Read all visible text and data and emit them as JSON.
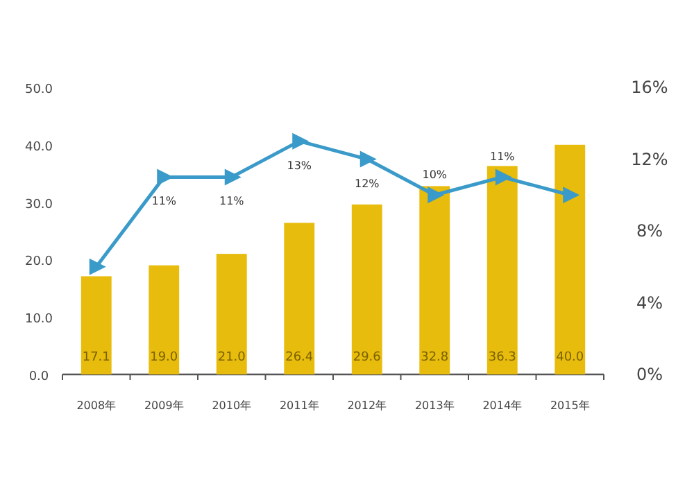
{
  "chart_data": {
    "type": "bar",
    "categories": [
      "2008年",
      "2009年",
      "2010年",
      "2011年",
      "2012年",
      "2013年",
      "2014年",
      "2015年"
    ],
    "series": [
      {
        "color": "#e8bc0c",
        "values": [
          17.1,
          19.0,
          21.0,
          26.4,
          29.6,
          32.8,
          36.3,
          40.0
        ],
        "value_labels": [
          "17.1",
          "19.0",
          "21.0",
          "26.4",
          "29.6",
          "32.8",
          "36.3",
          "40.0"
        ]
      },
      {
        "type": "line",
        "axis": "y2",
        "color": "#3a9ac9",
        "marker": "triangle",
        "values": [
          6,
          11,
          11,
          13,
          12,
          10,
          11,
          10
        ],
        "value_labels": [
          null,
          "11%",
          "11%",
          "13%",
          "12%",
          "10%",
          "11%",
          null
        ]
      }
    ],
    "ylim": [
      0,
      50
    ],
    "yticks": [
      {
        "value": 0,
        "label": "0.0"
      },
      {
        "value": 10,
        "label": "10.0"
      },
      {
        "value": 20,
        "label": "20.0"
      },
      {
        "value": 30,
        "label": "30.0"
      },
      {
        "value": 40,
        "label": "40.0"
      },
      {
        "value": 50,
        "label": "50.0"
      }
    ],
    "y2lim": [
      0,
      16
    ],
    "y2ticks": [
      {
        "value": 0,
        "label": "0%"
      },
      {
        "value": 4,
        "label": "4%"
      },
      {
        "value": 8,
        "label": "8%"
      },
      {
        "value": 12,
        "label": "12%"
      },
      {
        "value": 16,
        "label": "16%"
      }
    ]
  }
}
